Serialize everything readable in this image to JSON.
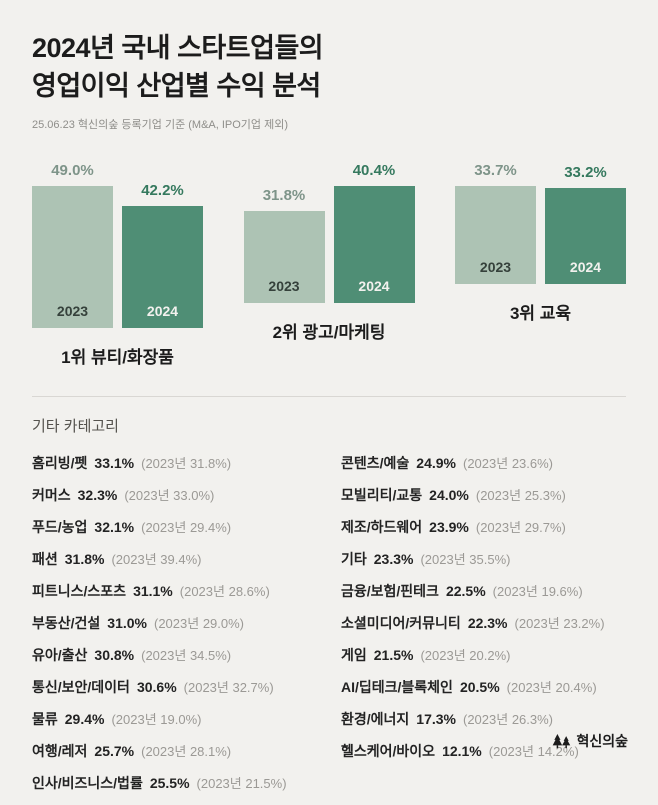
{
  "header": {
    "title_lines": [
      "2024년 국내 스타트업들의",
      "영업이익 산업별 수익 분석"
    ],
    "subtitle": "25.06.23 혁신의숲 등록기업 기준 (M&A, IPO기업 제외)"
  },
  "chart_data": {
    "type": "bar",
    "categories": [
      "1위 뷰티/화장품",
      "2위 광고/마케팅",
      "3위 교육"
    ],
    "series": [
      {
        "name": "2023",
        "values": [
          49.0,
          31.8,
          33.7
        ],
        "color": "#adc3b4",
        "label_color": "#7e9489"
      },
      {
        "name": "2024",
        "values": [
          42.2,
          40.4,
          33.2
        ],
        "color": "#4f8e75",
        "label_color": "#35795e"
      }
    ],
    "unit": "%",
    "ylim": [
      0,
      50
    ],
    "grid": false,
    "legend_position": "inside-bar-bottom",
    "value_labels": "above-bars"
  },
  "groups": [
    {
      "label": "1위 뷰티/화장품",
      "bars": [
        {
          "year": "2023",
          "value": 49.0,
          "display": "49.0%"
        },
        {
          "year": "2024",
          "value": 42.2,
          "display": "42.2%"
        }
      ]
    },
    {
      "label": "2위 광고/마케팅",
      "bars": [
        {
          "year": "2023",
          "value": 31.8,
          "display": "31.8%"
        },
        {
          "year": "2024",
          "value": 40.4,
          "display": "40.4%"
        }
      ]
    },
    {
      "label": "3위 교육",
      "bars": [
        {
          "year": "2023",
          "value": 33.7,
          "display": "33.7%"
        },
        {
          "year": "2024",
          "value": 33.2,
          "display": "33.2%"
        }
      ]
    }
  ],
  "other_categories": {
    "heading": "기타 카테고리",
    "left": [
      {
        "name": "홈리빙/펫",
        "value": "33.1%",
        "prev": "(2023년 31.8%)"
      },
      {
        "name": "커머스",
        "value": "32.3%",
        "prev": "(2023년 33.0%)"
      },
      {
        "name": "푸드/농업",
        "value": "32.1%",
        "prev": "(2023년 29.4%)"
      },
      {
        "name": "패션",
        "value": "31.8%",
        "prev": "(2023년 39.4%)"
      },
      {
        "name": "피트니스/스포츠",
        "value": "31.1%",
        "prev": "(2023년 28.6%)"
      },
      {
        "name": "부동산/건설",
        "value": "31.0%",
        "prev": "(2023년 29.0%)"
      },
      {
        "name": "유아/출산",
        "value": "30.8%",
        "prev": "(2023년 34.5%)"
      },
      {
        "name": "통신/보안/데이터",
        "value": "30.6%",
        "prev": "(2023년 32.7%)"
      },
      {
        "name": "물류",
        "value": "29.4%",
        "prev": "(2023년 19.0%)"
      },
      {
        "name": "여행/레저",
        "value": "25.7%",
        "prev": "(2023년 28.1%)"
      },
      {
        "name": "인사/비즈니스/법률",
        "value": "25.5%",
        "prev": "(2023년 21.5%)"
      }
    ],
    "right": [
      {
        "name": "콘텐츠/예술",
        "value": "24.9%",
        "prev": "(2023년 23.6%)"
      },
      {
        "name": "모빌리티/교통",
        "value": "24.0%",
        "prev": "(2023년 25.3%)"
      },
      {
        "name": "제조/하드웨어",
        "value": "23.9%",
        "prev": "(2023년 29.7%)"
      },
      {
        "name": "기타",
        "value": "23.3%",
        "prev": "(2023년 35.5%)"
      },
      {
        "name": "금융/보험/핀테크",
        "value": "22.5%",
        "prev": "(2023년 19.6%)"
      },
      {
        "name": "소셜미디어/커뮤니티",
        "value": "22.3%",
        "prev": "(2023년 23.2%)"
      },
      {
        "name": "게임",
        "value": "21.5%",
        "prev": "(2023년 20.2%)"
      },
      {
        "name": "AI/딥테크/블록체인",
        "value": "20.5%",
        "prev": "(2023년 20.4%)"
      },
      {
        "name": "환경/에너지",
        "value": "17.3%",
        "prev": "(2023년 26.3%)"
      },
      {
        "name": "헬스케어/바이오",
        "value": "12.1%",
        "prev": "(2023년 14.2%)"
      }
    ]
  },
  "footer": {
    "brand": "혁신의숲"
  },
  "colors": {
    "background": "#f2f1ee",
    "bar_2023": "#adc3b4",
    "bar_2024": "#4f8e75",
    "label_2023": "#7e9489",
    "label_2024": "#35795e"
  }
}
